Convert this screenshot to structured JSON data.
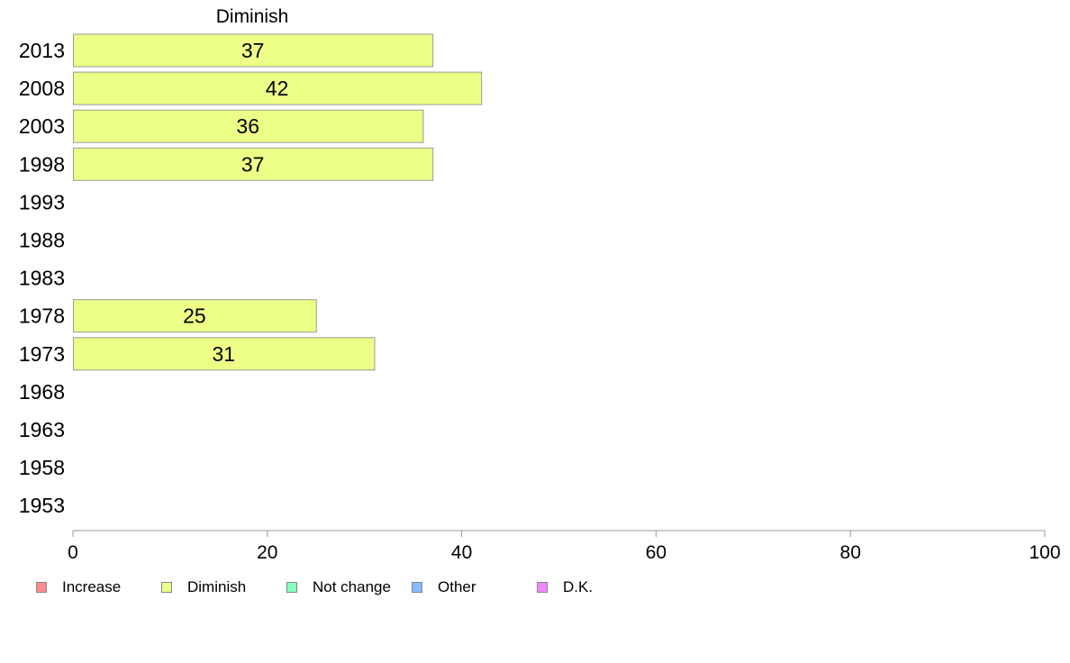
{
  "chart_data": {
    "type": "bar",
    "orientation": "horizontal",
    "title": "Diminish",
    "categories": [
      "2013",
      "2008",
      "2003",
      "1998",
      "1993",
      "1988",
      "1983",
      "1978",
      "1973",
      "1968",
      "1963",
      "1958",
      "1953"
    ],
    "series": [
      {
        "name": "Diminish",
        "values": [
          37,
          42,
          36,
          37,
          null,
          null,
          null,
          25,
          31,
          null,
          null,
          null,
          null
        ]
      }
    ],
    "xlim": [
      0,
      100
    ],
    "xticks": [
      0,
      20,
      40,
      60,
      80,
      100
    ],
    "bar_color": "#eeff88",
    "bar_border_color": "#999999",
    "axis_color": "#999999",
    "grid": false,
    "legend_position": "bottom",
    "legend": [
      {
        "label": "Increase",
        "color": "#ff8c8c"
      },
      {
        "label": "Diminish",
        "color": "#eeff88"
      },
      {
        "label": "Not change",
        "color": "#88ffbb"
      },
      {
        "label": "Other",
        "color": "#88bbff"
      },
      {
        "label": "D.K.",
        "color": "#ee88ff"
      }
    ]
  }
}
